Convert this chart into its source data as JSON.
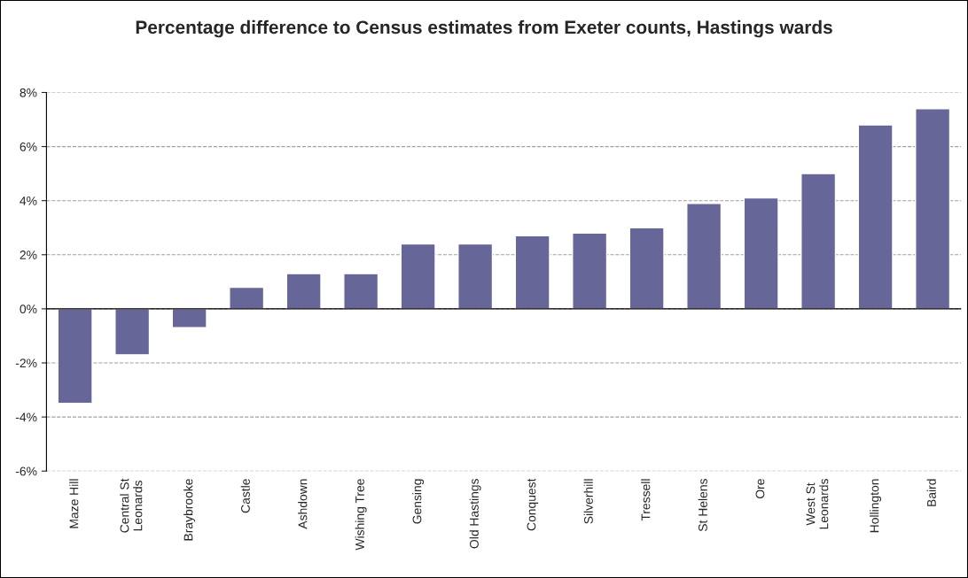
{
  "chart_data": {
    "type": "bar",
    "title": "Percentage difference to Census estimates from Exeter counts, Hastings wards",
    "categories": [
      "Maze Hill",
      "Central St Leonards",
      "Braybrooke",
      "Castle",
      "Ashdown",
      "Wishing Tree",
      "Gensing",
      "Old Hastings",
      "Conquest",
      "Silverhill",
      "Tressell",
      "St Helens",
      "Ore",
      "West St Leonards",
      "Hollington",
      "Baird"
    ],
    "values": [
      -3.5,
      -1.7,
      -0.7,
      0.8,
      1.3,
      1.3,
      2.4,
      2.4,
      2.7,
      2.8,
      3.0,
      3.9,
      4.1,
      5.0,
      6.8,
      7.4
    ],
    "color": "#666699",
    "ylim": [
      -6,
      8
    ],
    "yticks": [
      {
        "value": -6,
        "label": "-6%"
      },
      {
        "value": -4,
        "label": "-4%"
      },
      {
        "value": -2,
        "label": "-2%"
      },
      {
        "value": 0,
        "label": "0%"
      },
      {
        "value": 2,
        "label": "2%"
      },
      {
        "value": 4,
        "label": "4%"
      },
      {
        "value": 6,
        "label": "6%"
      },
      {
        "value": 8,
        "label": "8%"
      }
    ],
    "grid": "y",
    "line_style": "dashed",
    "legend": false
  }
}
